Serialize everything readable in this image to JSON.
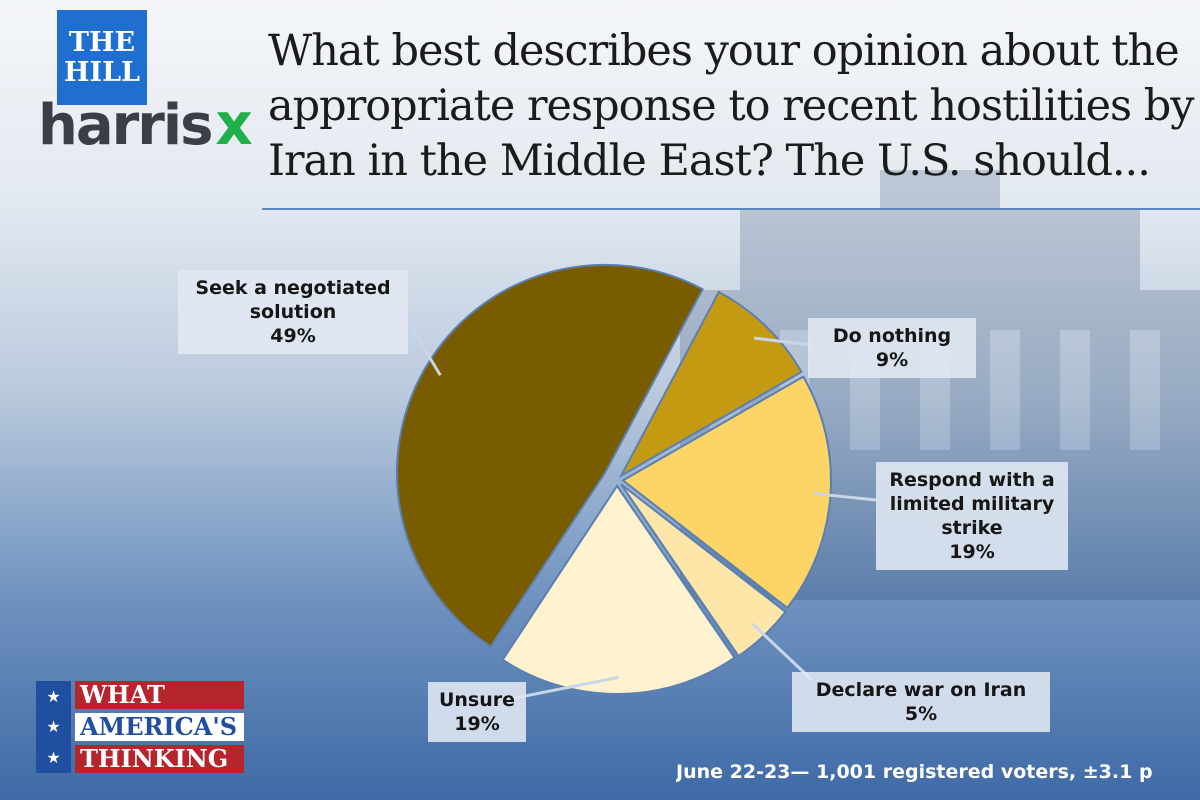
{
  "branding": {
    "the_hill": "THE\nHILL",
    "harris": "harris",
    "x": "x",
    "wat_line1": "WHAT",
    "wat_line2": "AMERICA'S",
    "wat_line3": "THINKING",
    "star": "★"
  },
  "question": "What best describes your opinion about the\nappropriate response to recent hostilities by\nIran in the Middle East? The U.S. should...",
  "footer": "June 22-23— 1,001 registered voters, ±3.1 p",
  "chart_data": {
    "type": "pie",
    "title": "",
    "slices": [
      {
        "label": "Do nothing",
        "value": 9,
        "value_label": "9%",
        "color": "#c39a12"
      },
      {
        "label": "Respond with a\nlimited military\nstrike",
        "value": 19,
        "value_label": "19%",
        "color": "#fdd466"
      },
      {
        "label": "Declare war on Iran",
        "value": 5,
        "value_label": "5%",
        "color": "#fde6a8"
      },
      {
        "label": "Unsure",
        "value": 19,
        "value_label": "19%",
        "color": "#fff3cf"
      },
      {
        "label": "Seek a negotiated\nsolution",
        "value": 49,
        "value_label": "49%",
        "color": "#7a5c00"
      }
    ]
  }
}
